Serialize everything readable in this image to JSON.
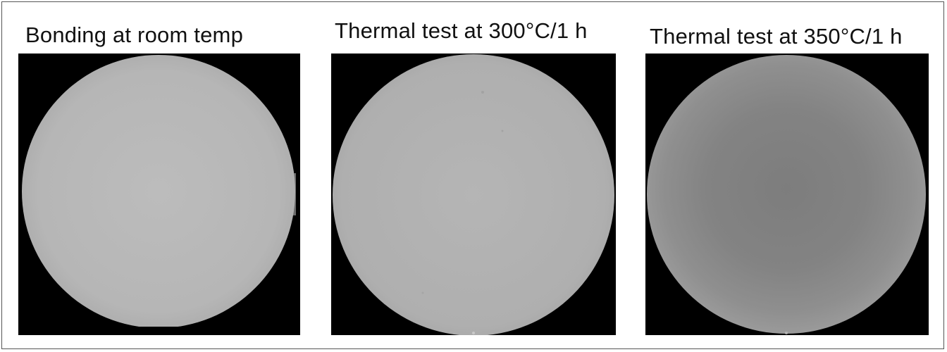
{
  "panels": [
    {
      "caption": "Bonding at room temp"
    },
    {
      "caption": "Thermal test at 300°C/1 h"
    },
    {
      "caption": "Thermal test at 350°C/1 h"
    }
  ]
}
